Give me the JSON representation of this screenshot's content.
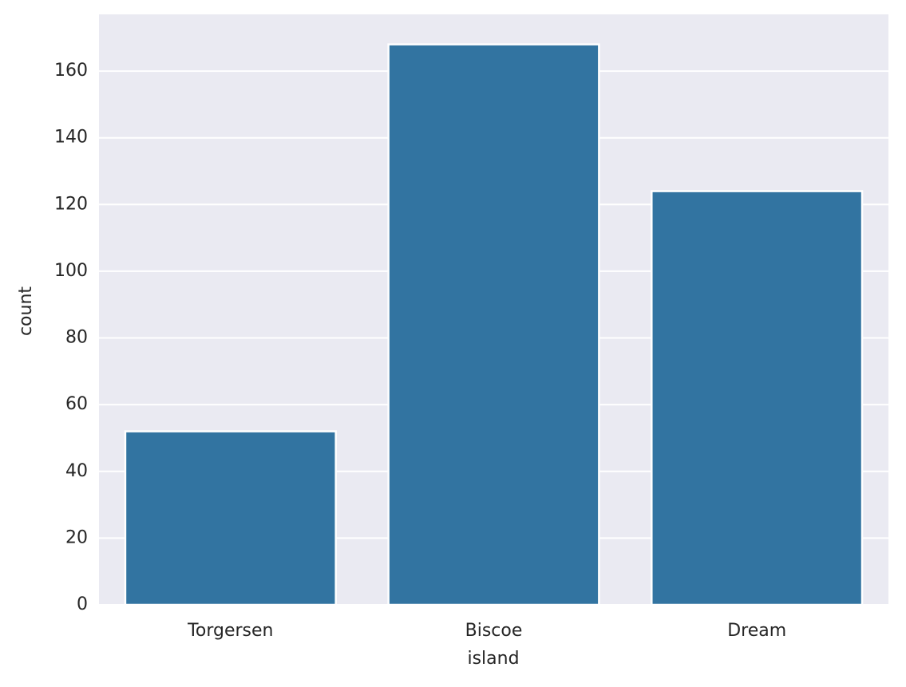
{
  "chart_data": {
    "type": "bar",
    "x_label": "island",
    "y_label": "count",
    "categories": [
      "Torgersen",
      "Biscoe",
      "Dream"
    ],
    "values": [
      52,
      168,
      124
    ],
    "color": "#3274a1",
    "ylim": [
      0,
      177
    ],
    "yticks": [
      0,
      20,
      40,
      60,
      80,
      100,
      120,
      140,
      160
    ],
    "grid": true
  }
}
